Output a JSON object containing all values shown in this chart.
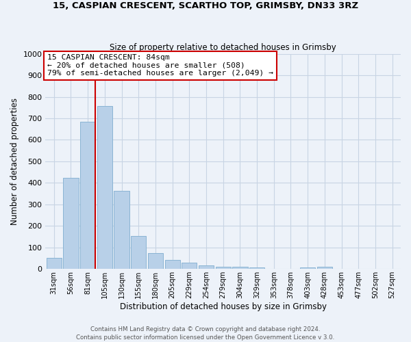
{
  "title1": "15, CASPIAN CRESCENT, SCARTHO TOP, GRIMSBY, DN33 3RZ",
  "title2": "Size of property relative to detached houses in Grimsby",
  "xlabel": "Distribution of detached houses by size in Grimsby",
  "ylabel": "Number of detached properties",
  "bar_labels": [
    "31sqm",
    "56sqm",
    "81sqm",
    "105sqm",
    "130sqm",
    "155sqm",
    "180sqm",
    "205sqm",
    "229sqm",
    "254sqm",
    "279sqm",
    "304sqm",
    "329sqm",
    "353sqm",
    "378sqm",
    "403sqm",
    "428sqm",
    "453sqm",
    "477sqm",
    "502sqm",
    "527sqm"
  ],
  "bar_values": [
    52,
    422,
    685,
    757,
    362,
    153,
    75,
    42,
    30,
    18,
    12,
    10,
    7,
    0,
    0,
    8,
    10,
    0,
    0,
    0,
    0
  ],
  "bar_color": "#b8d0e8",
  "bar_edgecolor": "#8ab4d4",
  "grid_color": "#c8d4e4",
  "background_color": "#edf2f9",
  "vline_color": "#cc0000",
  "annotation_line1": "15 CASPIAN CRESCENT: 84sqm",
  "annotation_line2": "← 20% of detached houses are smaller (508)",
  "annotation_line3": "79% of semi-detached houses are larger (2,049) →",
  "annotation_box_color": "#ffffff",
  "annotation_box_edgecolor": "#cc0000",
  "footer1": "Contains HM Land Registry data © Crown copyright and database right 2024.",
  "footer2": "Contains public sector information licensed under the Open Government Licence v 3.0.",
  "ylim": [
    0,
    1000
  ],
  "yticks": [
    0,
    100,
    200,
    300,
    400,
    500,
    600,
    700,
    800,
    900,
    1000
  ]
}
